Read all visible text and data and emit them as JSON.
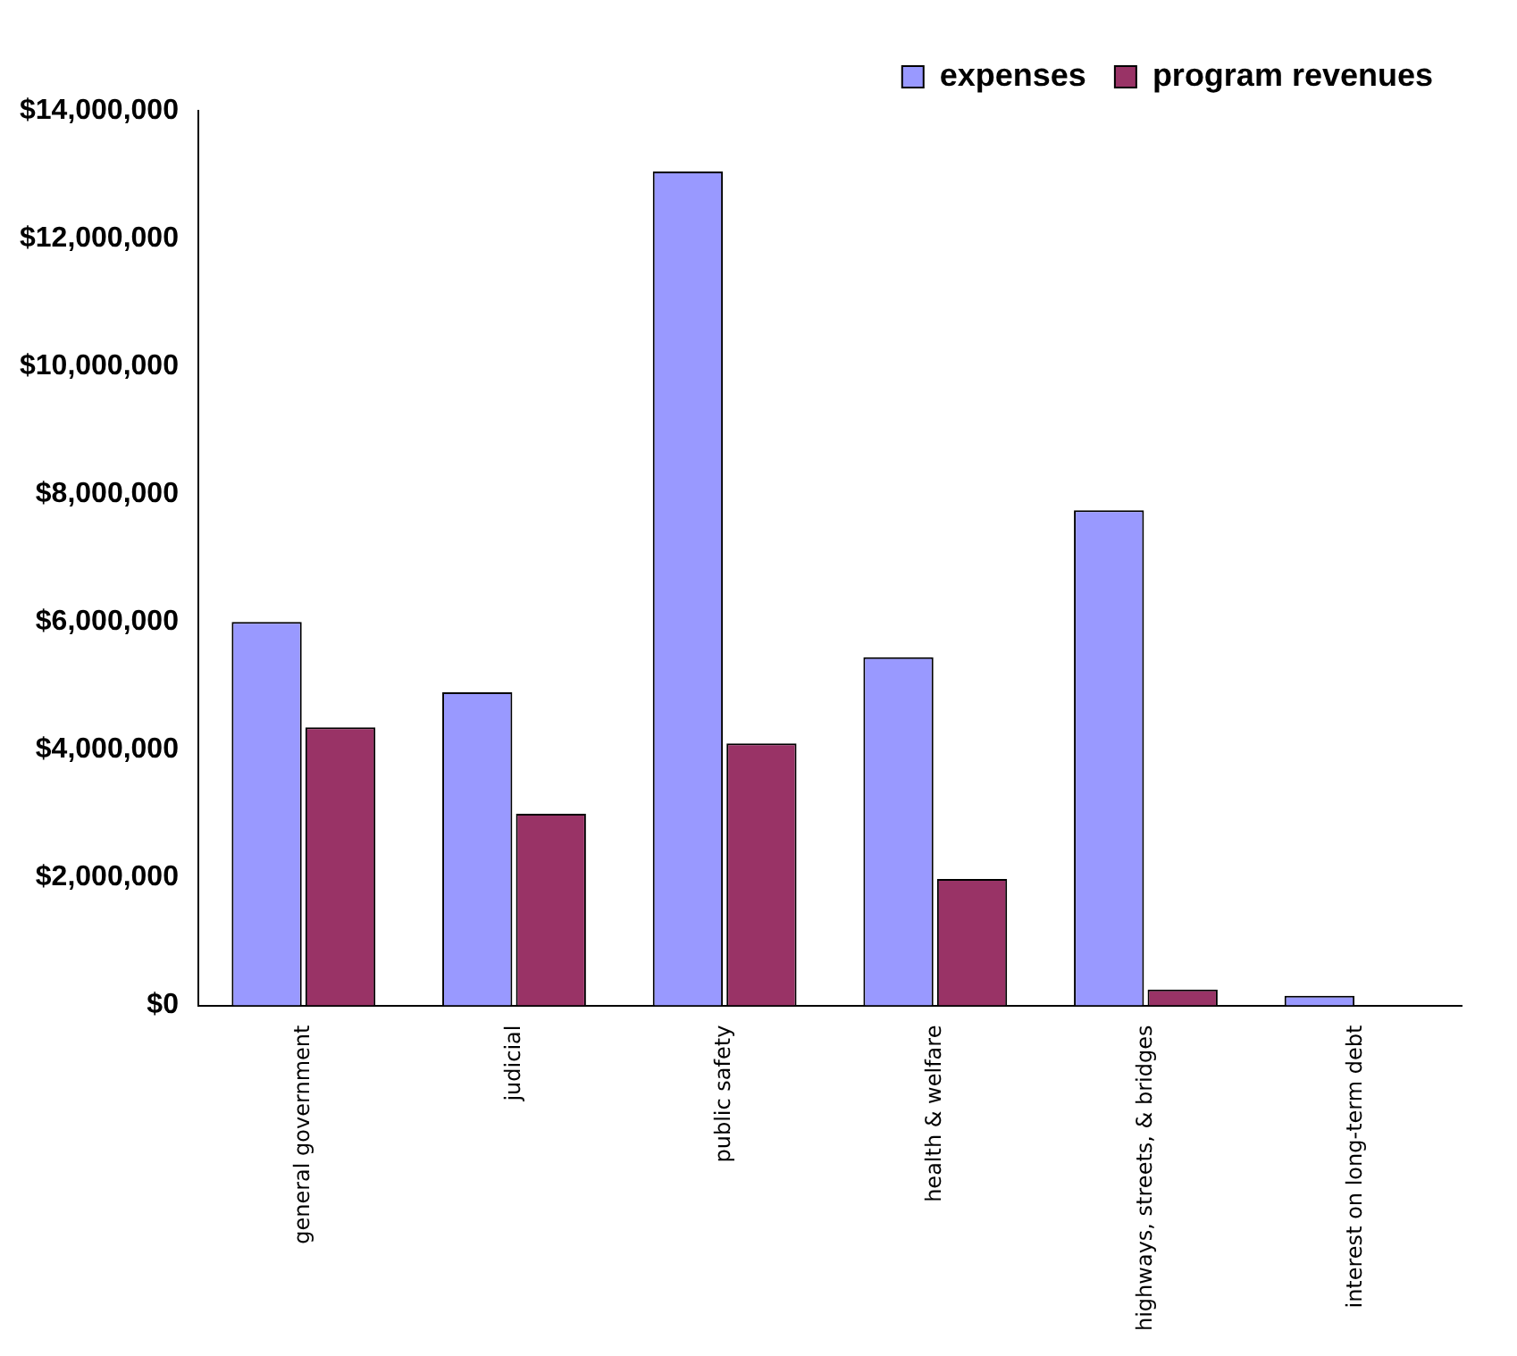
{
  "chart_data": {
    "type": "bar",
    "categories": [
      "general government",
      "judicial",
      "public safety",
      "health & welfare",
      "highways, streets, & bridges",
      "interest on long-term debt"
    ],
    "series": [
      {
        "name": "expenses",
        "color": "#9999ff",
        "values": [
          6000000,
          4900000,
          13050000,
          5450000,
          7750000,
          150000
        ]
      },
      {
        "name": "program revenues",
        "color": "#993366",
        "values": [
          4350000,
          3000000,
          4100000,
          1980000,
          250000,
          null
        ]
      }
    ],
    "ylim": [
      0,
      14000000
    ],
    "yticks": [
      {
        "value": 0,
        "label": "$0"
      },
      {
        "value": 2000000,
        "label": "$2,000,000"
      },
      {
        "value": 4000000,
        "label": "$4,000,000"
      },
      {
        "value": 6000000,
        "label": "$6,000,000"
      },
      {
        "value": 8000000,
        "label": "$8,000,000"
      },
      {
        "value": 10000000,
        "label": "$10,000,000"
      },
      {
        "value": 12000000,
        "label": "$12,000,000"
      },
      {
        "value": 14000000,
        "label": "$14,000,000"
      }
    ],
    "grid": false,
    "legend": "top right"
  }
}
